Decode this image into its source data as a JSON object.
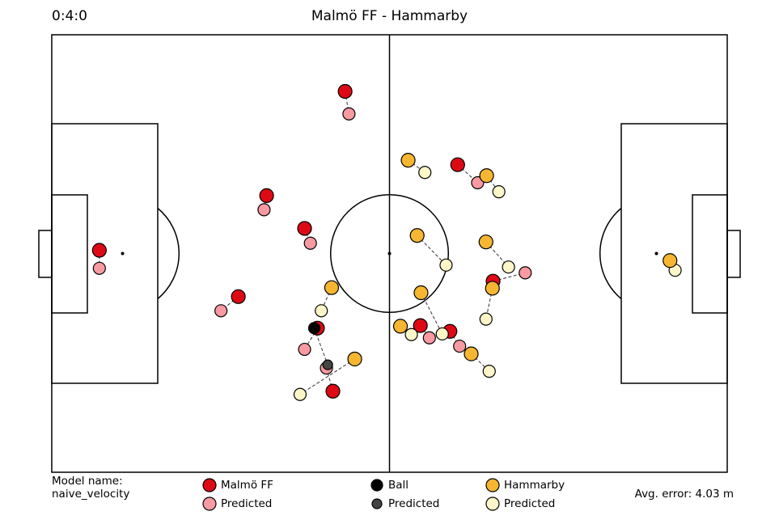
{
  "header": {
    "clock": "0:4:0",
    "title": "Malmö FF - Hammarby"
  },
  "footer": {
    "model_label": "Model name:",
    "model_value": "naive_velocity",
    "avg_error": "Avg. error: 4.03 m"
  },
  "colors": {
    "home_actual": "#dd0a16",
    "home_predicted": "#f79aa2",
    "ball_actual": "#000000",
    "ball_predicted": "#444444",
    "away_actual": "#f6b632",
    "away_predicted": "#fdf6c8"
  },
  "legend": [
    {
      "id": "home-actual",
      "label": "Malmö FF",
      "color_key": "home_actual",
      "size": "large"
    },
    {
      "id": "home-predicted",
      "label": "Predicted",
      "color_key": "home_predicted",
      "size": "large"
    },
    {
      "id": "ball-actual",
      "label": "Ball",
      "color_key": "ball_actual",
      "size": "small"
    },
    {
      "id": "ball-predicted",
      "label": "Predicted",
      "color_key": "ball_predicted",
      "size": "small"
    },
    {
      "id": "away-actual",
      "label": "Hammarby",
      "color_key": "away_actual",
      "size": "large"
    },
    {
      "id": "away-predicted",
      "label": "Predicted",
      "color_key": "away_predicted",
      "size": "large"
    }
  ],
  "chart_data": {
    "type": "scatter",
    "title": "Malmö FF - Hammarby",
    "pitch_m": [
      105,
      68
    ],
    "xlim": [
      -52.5,
      52.5
    ],
    "ylim": [
      -34,
      34
    ],
    "series": [
      {
        "name": "Malmö FF",
        "color_key": "home_actual",
        "pred_color_key": "home_predicted",
        "points": [
          {
            "actual": [
              -45.1,
              0.5
            ],
            "predicted": [
              -45.1,
              -2.3
            ]
          },
          {
            "actual": [
              -23.5,
              -6.7
            ],
            "predicted": [
              -26.2,
              -8.9
            ]
          },
          {
            "actual": [
              -19.1,
              9.0
            ],
            "predicted": [
              -19.5,
              6.8
            ]
          },
          {
            "actual": [
              -13.2,
              3.9
            ],
            "predicted": [
              -12.3,
              1.6
            ]
          },
          {
            "actual": [
              -6.9,
              25.2
            ],
            "predicted": [
              -6.3,
              21.7
            ]
          },
          {
            "actual": [
              -11.2,
              -11.6
            ],
            "predicted": [
              -13.2,
              -14.9
            ]
          },
          {
            "actual": [
              -8.8,
              -21.4
            ],
            "predicted": [
              -9.8,
              -17.8
            ]
          },
          {
            "actual": [
              4.8,
              -11.2
            ],
            "predicted": [
              6.2,
              -13.1
            ]
          },
          {
            "actual": [
              9.4,
              -12.1
            ],
            "predicted": [
              10.9,
              -14.4
            ]
          },
          {
            "actual": [
              10.6,
              13.8
            ],
            "predicted": [
              13.7,
              11.0
            ]
          },
          {
            "actual": [
              16.1,
              -4.3
            ],
            "predicted": [
              21.1,
              -3.0
            ]
          }
        ]
      },
      {
        "name": "Hammarby",
        "color_key": "away_actual",
        "pred_color_key": "away_predicted",
        "points": [
          {
            "actual": [
              43.6,
              -1.1
            ],
            "predicted": [
              44.4,
              -2.6
            ]
          },
          {
            "actual": [
              2.9,
              14.5
            ],
            "predicted": [
              5.5,
              12.6
            ]
          },
          {
            "actual": [
              15.1,
              12.1
            ],
            "predicted": [
              17.0,
              9.6
            ]
          },
          {
            "actual": [
              4.3,
              2.8
            ],
            "predicted": [
              8.8,
              -1.8
            ]
          },
          {
            "actual": [
              15.0,
              1.8
            ],
            "predicted": [
              18.5,
              -2.1
            ]
          },
          {
            "actual": [
              4.9,
              -6.1
            ],
            "predicted": [
              8.2,
              -12.5
            ]
          },
          {
            "actual": [
              16.0,
              -5.4
            ],
            "predicted": [
              15.0,
              -10.2
            ]
          },
          {
            "actual": [
              1.7,
              -11.3
            ],
            "predicted": [
              3.4,
              -12.6
            ]
          },
          {
            "actual": [
              12.7,
              -15.6
            ],
            "predicted": [
              15.5,
              -18.3
            ]
          },
          {
            "actual": [
              -9.0,
              -5.3
            ],
            "predicted": [
              -10.6,
              -8.9
            ]
          },
          {
            "actual": [
              -5.4,
              -16.4
            ],
            "predicted": [
              -13.9,
              -21.9
            ]
          }
        ]
      }
    ],
    "ball": {
      "name": "Ball",
      "actual": [
        -11.7,
        -11.6
      ],
      "predicted": [
        -9.6,
        -17.3
      ]
    }
  }
}
